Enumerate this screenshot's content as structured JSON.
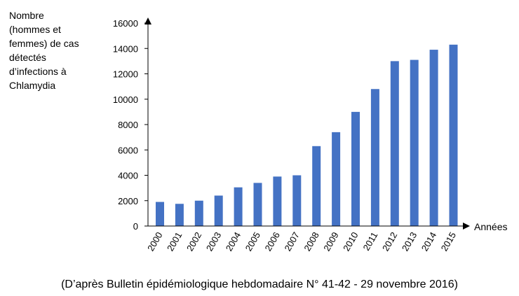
{
  "chart_data": {
    "type": "bar",
    "ylabel": "Nombre\n(hommes et\nfemmes) de cas\ndétectés\nd’infections à\nChlamydia",
    "xlabel": "Années",
    "categories": [
      "2000",
      "2001",
      "2002",
      "2003",
      "2004",
      "2005",
      "2006",
      "2007",
      "2008",
      "2009",
      "2010",
      "2011",
      "2012",
      "2013",
      "2014",
      "2015"
    ],
    "values": [
      1900,
      1750,
      2000,
      2400,
      3050,
      3400,
      3900,
      4000,
      6300,
      7400,
      9000,
      10800,
      13000,
      13100,
      13900,
      14300
    ],
    "ylim": [
      0,
      16000
    ],
    "yticks": [
      "0",
      "2000",
      "4000",
      "6000",
      "8000",
      "10000",
      "12000",
      "14000",
      "16000"
    ],
    "bar_color": "#4472c4",
    "grid": false,
    "legend": "none"
  },
  "source": "(D’après Bulletin épidémiologique hebdomadaire N° 41-42 - 29 novembre 2016)"
}
